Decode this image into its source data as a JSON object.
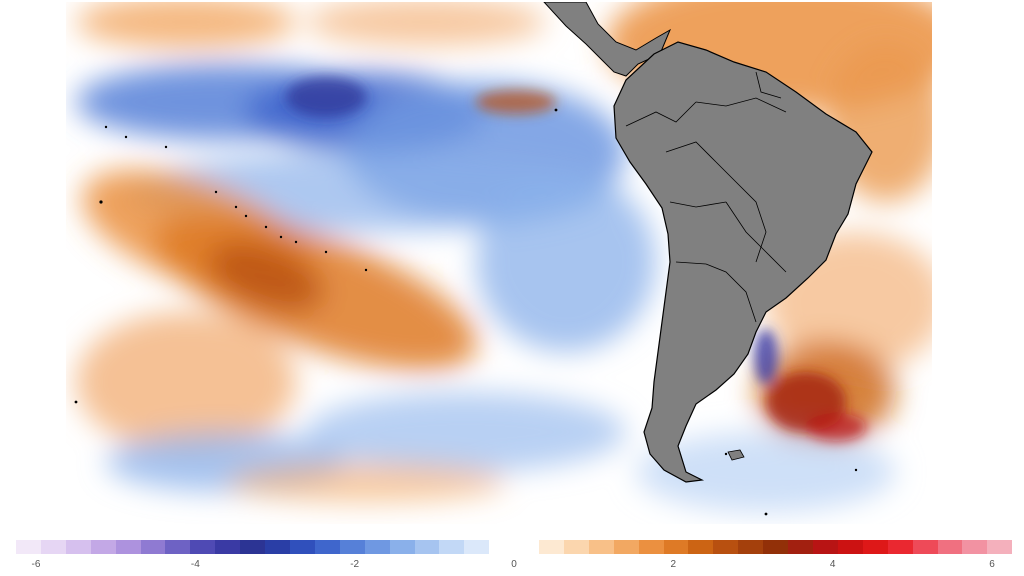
{
  "map": {
    "land_color": "#808080",
    "land_border_color": "#000000",
    "ocean_neutral_color": "#ffffff"
  },
  "colorbar": {
    "min": -6,
    "max": 6,
    "tick_labels": [
      "-6",
      "-4",
      "-2",
      "0",
      "2",
      "4",
      "6"
    ],
    "colors": [
      "#f2e8f8",
      "#e6d6f4",
      "#d6c0ee",
      "#c3a8e6",
      "#ad92de",
      "#8f7ad2",
      "#6e62c4",
      "#4f4ab4",
      "#3a3aa4",
      "#2c3494",
      "#2a3ea6",
      "#3050bc",
      "#3f66cc",
      "#5680d8",
      "#6f98e2",
      "#8ab0ea",
      "#a6c4f0",
      "#c2d8f6",
      "#dbe8fa",
      "#ffffff",
      "#ffffff",
      "#fde9d2",
      "#fbd6ae",
      "#f8c088",
      "#f2a862",
      "#eb9040",
      "#de7a26",
      "#cc6414",
      "#b85010",
      "#a4400c",
      "#923008",
      "#a22010",
      "#b81414",
      "#cc1212",
      "#de1818",
      "#ea2830",
      "#ee4a58",
      "#f07080",
      "#f292a2",
      "#f4b0bc"
    ]
  }
}
